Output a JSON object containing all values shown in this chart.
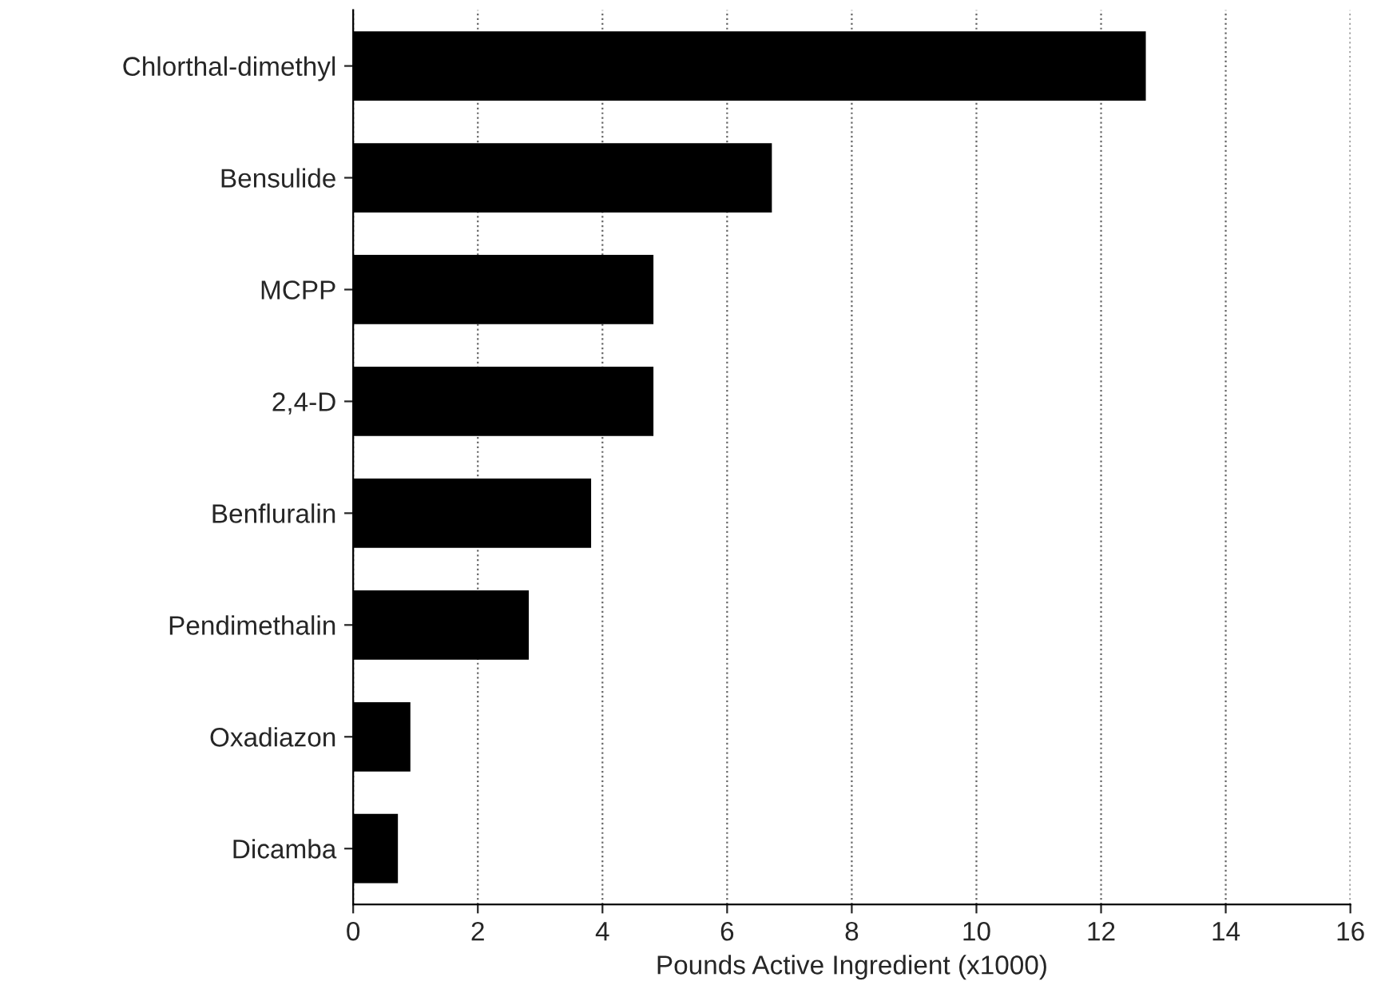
{
  "chart_data": {
    "type": "bar",
    "orientation": "horizontal",
    "xlabel": "Pounds Active Ingredient (x1000)",
    "categories": [
      "Chlorthal-dimethyl",
      "Bensulide",
      "MCPP",
      "2,4-D",
      "Benfluralin",
      "Pendimethalin",
      "Oxadiazon",
      "Dicamba"
    ],
    "values": [
      12.7,
      6.7,
      4.8,
      4.8,
      3.8,
      2.8,
      0.9,
      0.7
    ],
    "color": "#000000",
    "xlim": [
      0,
      16
    ],
    "xticks": [
      0,
      2,
      4,
      6,
      8,
      10,
      12,
      14,
      16
    ],
    "grid": "x"
  }
}
